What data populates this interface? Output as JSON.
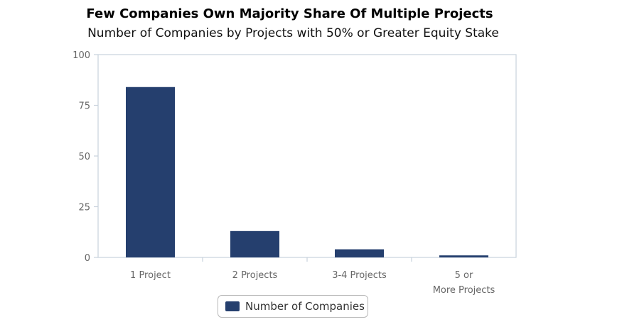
{
  "chart_data": {
    "type": "bar",
    "title": "Few Companies Own Majority Share Of Multiple Projects",
    "subtitle": "Number of Companies by Projects with 50% or Greater Equity Stake",
    "categories": [
      "1 Project",
      "2 Projects",
      "3-4 Projects",
      "5 or More Projects"
    ],
    "series": [
      {
        "name": "Number of Companies",
        "values": [
          84,
          13,
          4,
          1
        ]
      }
    ],
    "ylim": [
      0,
      100
    ],
    "yticks": [
      0,
      25,
      50,
      75,
      100
    ],
    "grid": false,
    "legend_position": "bottom",
    "colors": {
      "bar": "#253f6e",
      "axis": "#c8d2dc",
      "tick_text": "#666666"
    }
  }
}
